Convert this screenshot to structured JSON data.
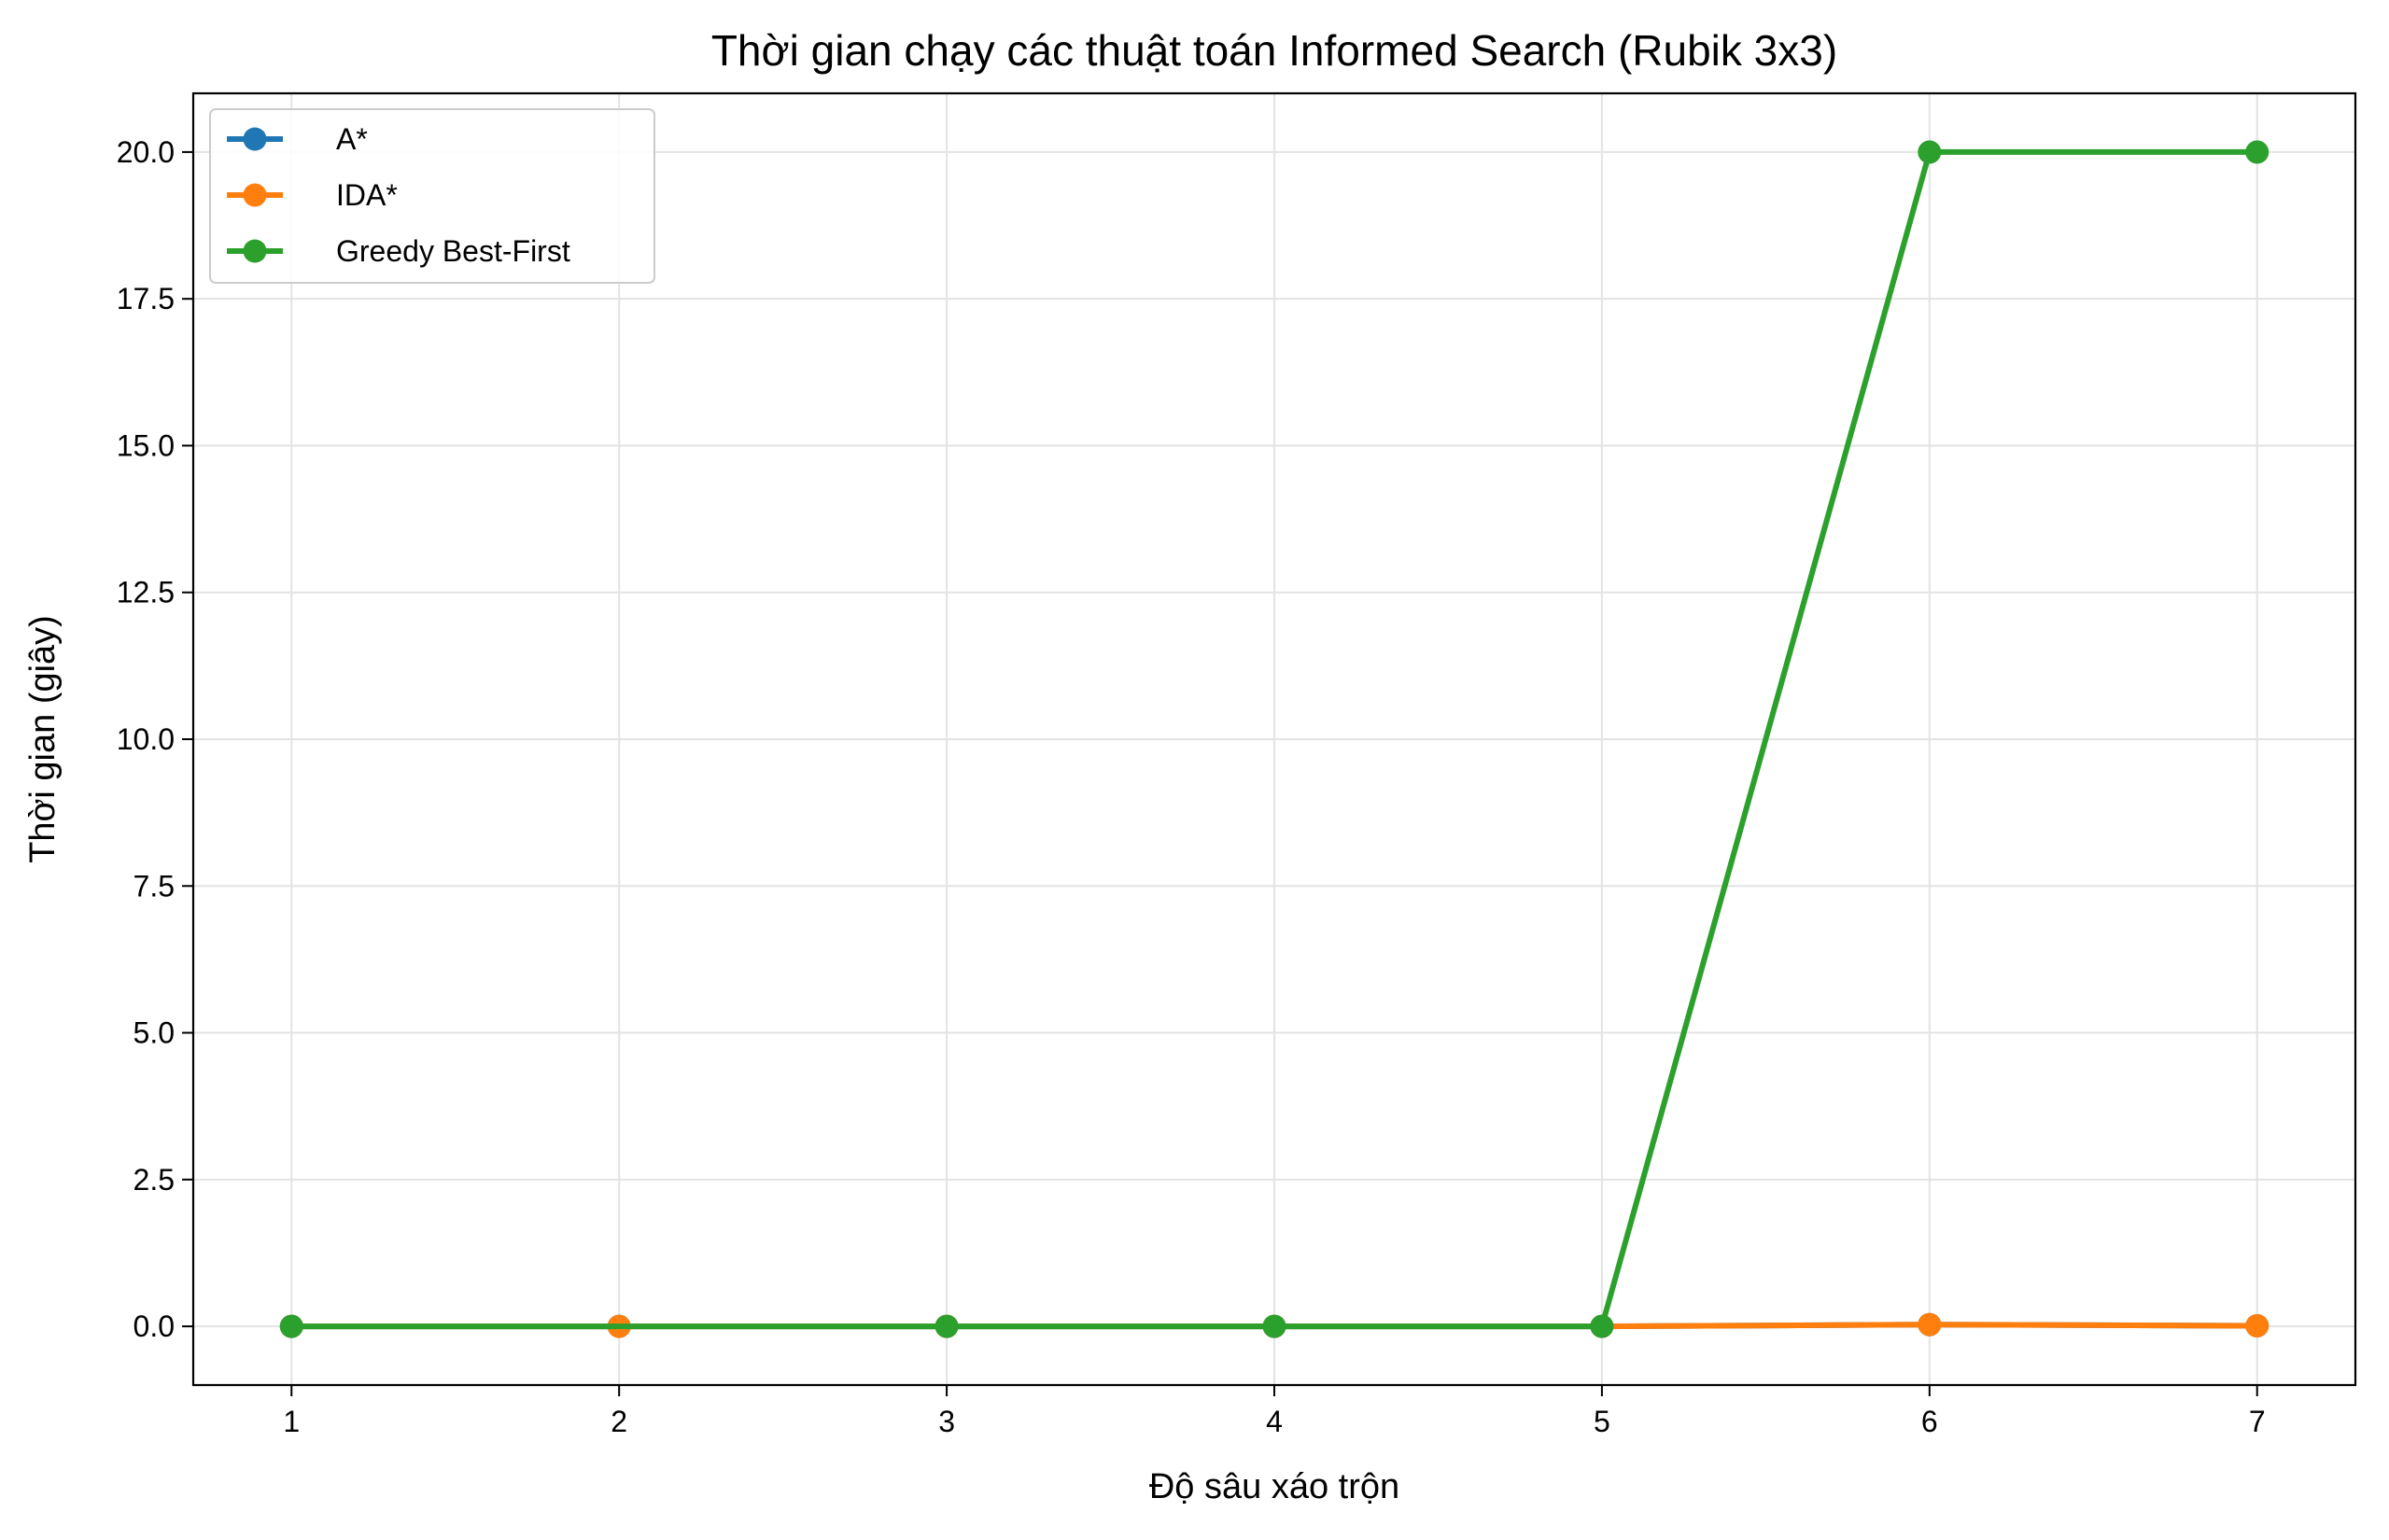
{
  "chart_data": {
    "type": "line",
    "title": "Thời gian chạy các thuật toán Informed Search (Rubik 3x3)",
    "xlabel": "Độ sâu xáo trộn",
    "ylabel": "Thời gian (giây)",
    "x": [
      1,
      2,
      3,
      4,
      5,
      6,
      7
    ],
    "xlim": [
      0.7,
      7.3
    ],
    "ylim": [
      -1.0,
      21.0
    ],
    "xticks": [
      "1",
      "2",
      "3",
      "4",
      "5",
      "6",
      "7"
    ],
    "yticks": [
      "0.0",
      "2.5",
      "5.0",
      "7.5",
      "10.0",
      "12.5",
      "15.0",
      "17.5",
      "20.0"
    ],
    "grid": true,
    "legend_position": "top-left",
    "series": [
      {
        "name": "A*",
        "color": "#1f77b4",
        "x": [
          1,
          2,
          3,
          4,
          5,
          6,
          7
        ],
        "values": [
          0.0,
          0.0,
          0.0,
          0.0,
          0.0,
          0.03,
          0.01
        ]
      },
      {
        "name": "IDA*",
        "color": "#ff7f0e",
        "x": [
          1,
          2,
          3,
          4,
          5,
          6,
          7
        ],
        "values": [
          0.0,
          0.0,
          0.0,
          0.0,
          0.0,
          0.03,
          0.01
        ]
      },
      {
        "name": "Greedy Best-First",
        "color": "#2ca02c",
        "x": [
          1,
          3,
          4,
          5,
          6,
          7
        ],
        "values": [
          0.0,
          0.0,
          0.0,
          0.0,
          20.0,
          20.0
        ]
      }
    ]
  }
}
